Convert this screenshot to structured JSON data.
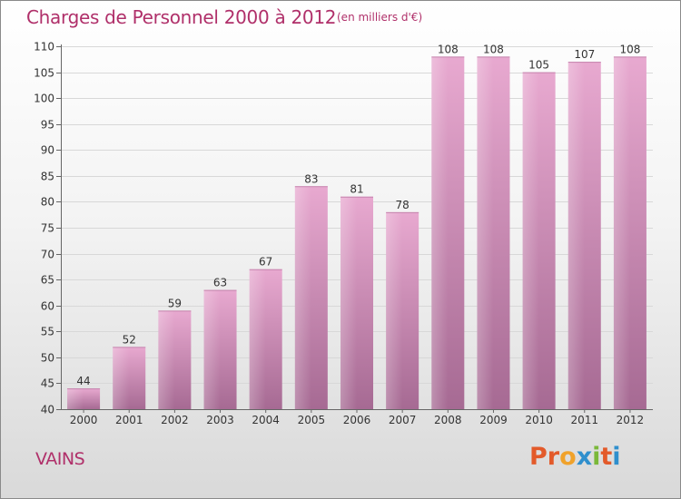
{
  "header": {
    "title": "Charges de Personnel 2000 à 2012",
    "subtitle": "(en milliers d'€)"
  },
  "footer": {
    "place": "VAINS",
    "logo_text": "Proxiti"
  },
  "colors": {
    "title": "#b0306a",
    "bar_top": "#e8a9d0",
    "bar_bottom": "#a66a93",
    "logo_letters": [
      "#e35a2a",
      "#e35a2a",
      "#f0a22b",
      "#2f8fcd",
      "#7ab83a",
      "#e35a2a",
      "#2f8fcd"
    ]
  },
  "chart_data": {
    "type": "bar",
    "categories": [
      "2000",
      "2001",
      "2002",
      "2003",
      "2004",
      "2005",
      "2006",
      "2007",
      "2008",
      "2009",
      "2010",
      "2011",
      "2012"
    ],
    "values": [
      44,
      52,
      59,
      63,
      67,
      83,
      81,
      78,
      108,
      108,
      105,
      107,
      108
    ],
    "title": "Charges de Personnel 2000 à 2012",
    "subtitle": "(en milliers d'€)",
    "ylim": [
      40,
      110
    ],
    "yticks": [
      40,
      45,
      50,
      55,
      60,
      65,
      70,
      75,
      80,
      85,
      90,
      95,
      100,
      105,
      110
    ],
    "grid": true,
    "data_labels": true
  }
}
